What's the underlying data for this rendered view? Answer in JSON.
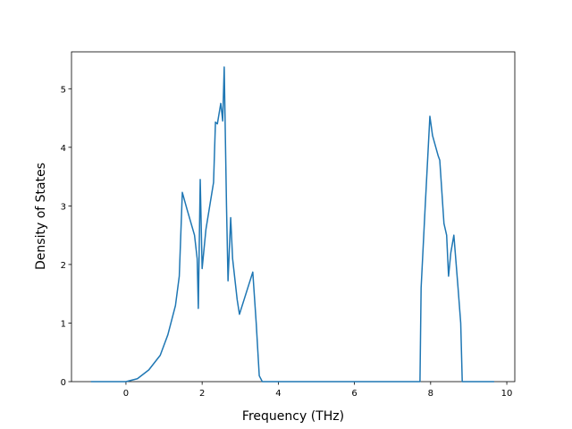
{
  "chart_data": {
    "type": "line",
    "x_label": "Frequency (THz)",
    "y_label": "Density of States",
    "x": [
      -0.92,
      0,
      0.3,
      0.6,
      0.9,
      1.1,
      1.3,
      1.4,
      1.48,
      1.6,
      1.8,
      1.87,
      1.9,
      1.95,
      2.0,
      2.1,
      2.3,
      2.35,
      2.4,
      2.49,
      2.54,
      2.58,
      2.64,
      2.68,
      2.75,
      2.8,
      2.92,
      2.98,
      3.33,
      3.42,
      3.5,
      3.58,
      7.72,
      7.75,
      7.85,
      7.98,
      8.05,
      8.2,
      8.24,
      8.35,
      8.42,
      8.47,
      8.53,
      8.61,
      8.72,
      8.79,
      8.83,
      9.67
    ],
    "values": [
      0,
      0,
      0.05,
      0.2,
      0.45,
      0.8,
      1.3,
      1.8,
      3.23,
      2.95,
      2.5,
      2.1,
      1.25,
      3.45,
      1.93,
      2.6,
      3.4,
      4.43,
      4.4,
      4.75,
      4.45,
      5.37,
      3.0,
      1.72,
      2.8,
      2.1,
      1.4,
      1.15,
      1.87,
      1.0,
      0.1,
      0,
      0,
      1.6,
      2.9,
      4.53,
      4.2,
      3.85,
      3.78,
      2.7,
      2.5,
      1.8,
      2.2,
      2.5,
      1.6,
      1.0,
      0,
      0
    ],
    "color": "#1f77b4",
    "xlim": [
      -1.43,
      10.21
    ],
    "ylim": [
      0,
      5.63
    ],
    "xticks": [
      0,
      2,
      4,
      6,
      8,
      10
    ],
    "yticks": [
      0,
      1,
      2,
      3,
      4,
      5
    ]
  }
}
